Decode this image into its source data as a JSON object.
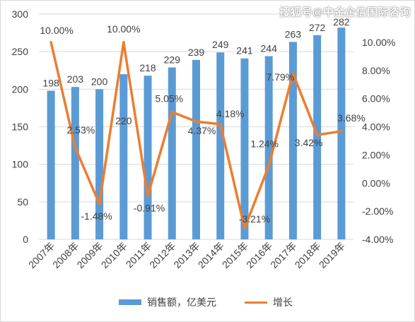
{
  "watermark": "搜狐号@中金企信国际咨询",
  "colors": {
    "bar": "#5b9bd5",
    "line": "#ed7d31",
    "grid": "#d9d9d9",
    "text": "#404040"
  },
  "chart_data": {
    "type": "bar+line",
    "categories": [
      "2007年",
      "2008年",
      "2009年",
      "2010年",
      "2011年",
      "2012年",
      "2013年",
      "2014年",
      "2015年",
      "2016年",
      "2017年",
      "2018年",
      "2019年"
    ],
    "series": [
      {
        "name": "销售额，亿美元",
        "type": "bar",
        "axis": "left",
        "values": [
          198,
          203,
          200,
          220,
          218,
          229,
          239,
          249,
          241,
          244,
          263,
          272,
          282
        ],
        "labels": [
          "198",
          "203",
          "200",
          "220",
          "218",
          "229",
          "239",
          "249",
          "241",
          "244",
          "263",
          "272",
          "282"
        ]
      },
      {
        "name": "增长",
        "type": "line",
        "axis": "right",
        "values": [
          10.0,
          2.53,
          -1.48,
          10.0,
          -0.91,
          5.05,
          4.37,
          4.18,
          -3.21,
          1.24,
          7.79,
          3.42,
          3.68
        ],
        "labels": [
          "10.00%",
          "2.53%",
          "-1.48%",
          "10.00%",
          "-0.91%",
          "5.05%",
          "4.37%",
          "4.18%",
          "-3.21%",
          "1.24%",
          "7.79%",
          "3.42%",
          "3.68%"
        ]
      }
    ],
    "y_left": {
      "range": [
        0,
        300
      ],
      "ticks": [
        "0",
        "50",
        "100",
        "150",
        "200",
        "250",
        "300"
      ]
    },
    "y_right": {
      "range": [
        -4,
        12
      ],
      "ticks": [
        "-4.00%",
        "-2.00%",
        "0.00%",
        "2.00%",
        "4.00%",
        "6.00%",
        "8.00%",
        "10.00%"
      ]
    },
    "grid": true,
    "legend_position": "bottom"
  }
}
